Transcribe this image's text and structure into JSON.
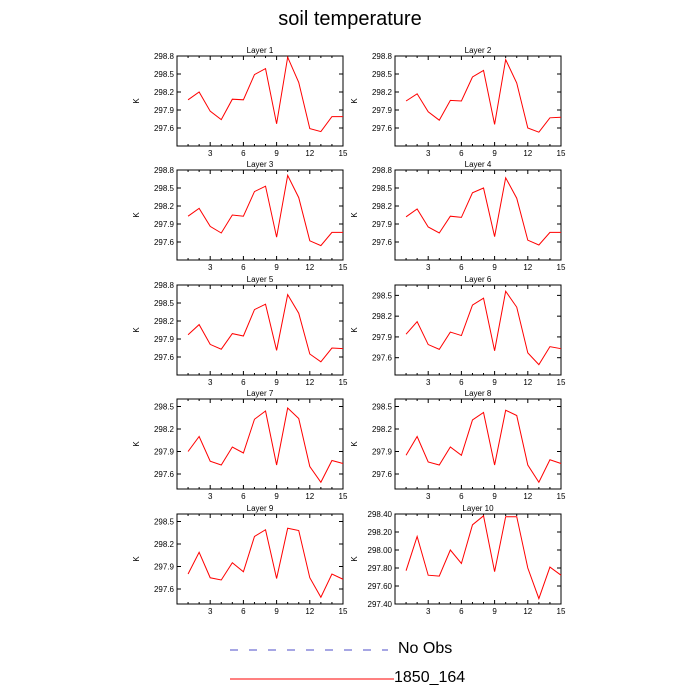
{
  "title": "soil temperature",
  "legend": {
    "entries": [
      {
        "label": "No Obs",
        "style": "dashed",
        "color": "#4c4cc8"
      },
      {
        "label": "1850_164",
        "style": "solid",
        "color": "#ff0000"
      }
    ]
  },
  "chart_data": [
    {
      "type": "line",
      "title": "Layer 1",
      "xlabel": "",
      "ylabel": "K",
      "xlim": [
        0,
        15
      ],
      "ylim": [
        297.3,
        298.8
      ],
      "x_ticks": [
        "3",
        "6",
        "9",
        "12",
        "15"
      ],
      "y_ticks": [
        "297.6",
        "297.9",
        "298.2",
        "298.5",
        "298.8"
      ],
      "x": [
        1,
        2,
        3,
        4,
        5,
        6,
        7,
        8,
        9,
        10,
        11,
        12,
        13,
        14,
        15
      ],
      "series": [
        {
          "name": "1850_164",
          "color": "#ff0000",
          "values": [
            298.07,
            298.2,
            297.88,
            297.74,
            298.08,
            298.07,
            298.49,
            298.59,
            297.67,
            298.78,
            298.36,
            297.59,
            297.54,
            297.79,
            297.79
          ]
        }
      ]
    },
    {
      "type": "line",
      "title": "Layer 2",
      "xlabel": "",
      "ylabel": "K",
      "xlim": [
        0,
        15
      ],
      "ylim": [
        297.3,
        298.8
      ],
      "x_ticks": [
        "3",
        "6",
        "9",
        "12",
        "15"
      ],
      "y_ticks": [
        "297.6",
        "297.9",
        "298.2",
        "298.5",
        "298.8"
      ],
      "x": [
        1,
        2,
        3,
        4,
        5,
        6,
        7,
        8,
        9,
        10,
        11,
        12,
        13,
        14,
        15
      ],
      "series": [
        {
          "name": "1850_164",
          "color": "#ff0000",
          "values": [
            298.05,
            298.17,
            297.87,
            297.73,
            298.06,
            298.05,
            298.45,
            298.56,
            297.66,
            298.74,
            298.35,
            297.6,
            297.53,
            297.77,
            297.78
          ]
        }
      ]
    },
    {
      "type": "line",
      "title": "Layer 3",
      "xlabel": "",
      "ylabel": "K",
      "xlim": [
        0,
        15
      ],
      "ylim": [
        297.3,
        298.8
      ],
      "x_ticks": [
        "3",
        "6",
        "9",
        "12",
        "15"
      ],
      "y_ticks": [
        "297.6",
        "297.9",
        "298.2",
        "298.5",
        "298.8"
      ],
      "x": [
        1,
        2,
        3,
        4,
        5,
        6,
        7,
        8,
        9,
        10,
        11,
        12,
        13,
        14,
        15
      ],
      "series": [
        {
          "name": "1850_164",
          "color": "#ff0000",
          "values": [
            298.03,
            298.16,
            297.86,
            297.75,
            298.05,
            298.03,
            298.44,
            298.53,
            297.68,
            298.71,
            298.34,
            297.62,
            297.54,
            297.76,
            297.76
          ]
        }
      ]
    },
    {
      "type": "line",
      "title": "Layer 4",
      "xlabel": "",
      "ylabel": "K",
      "xlim": [
        0,
        15
      ],
      "ylim": [
        297.3,
        298.8
      ],
      "x_ticks": [
        "3",
        "6",
        "9",
        "12",
        "15"
      ],
      "y_ticks": [
        "297.6",
        "297.9",
        "298.2",
        "298.5",
        "298.8"
      ],
      "x": [
        1,
        2,
        3,
        4,
        5,
        6,
        7,
        8,
        9,
        10,
        11,
        12,
        13,
        14,
        15
      ],
      "series": [
        {
          "name": "1850_164",
          "color": "#ff0000",
          "values": [
            298.02,
            298.15,
            297.85,
            297.75,
            298.03,
            298.01,
            298.42,
            298.5,
            297.69,
            298.67,
            298.33,
            297.63,
            297.55,
            297.76,
            297.76
          ]
        }
      ]
    },
    {
      "type": "line",
      "title": "Layer 5",
      "xlabel": "",
      "ylabel": "K",
      "xlim": [
        0,
        15
      ],
      "ylim": [
        297.3,
        298.8
      ],
      "x_ticks": [
        "3",
        "6",
        "9",
        "12",
        "15"
      ],
      "y_ticks": [
        "297.6",
        "297.9",
        "298.2",
        "298.5",
        "298.8"
      ],
      "x": [
        1,
        2,
        3,
        4,
        5,
        6,
        7,
        8,
        9,
        10,
        11,
        12,
        13,
        14,
        15
      ],
      "series": [
        {
          "name": "1850_164",
          "color": "#ff0000",
          "values": [
            297.97,
            298.14,
            297.81,
            297.73,
            297.99,
            297.95,
            298.39,
            298.48,
            297.71,
            298.64,
            298.33,
            297.65,
            297.52,
            297.75,
            297.74
          ]
        }
      ]
    },
    {
      "type": "line",
      "title": "Layer 6",
      "xlabel": "",
      "ylabel": "K",
      "xlim": [
        0,
        15
      ],
      "ylim": [
        297.35,
        298.65
      ],
      "x_ticks": [
        "3",
        "6",
        "9",
        "12",
        "15"
      ],
      "y_ticks": [
        "297.6",
        "297.9",
        "298.2",
        "298.5"
      ],
      "x": [
        1,
        2,
        3,
        4,
        5,
        6,
        7,
        8,
        9,
        10,
        11,
        12,
        13,
        14,
        15
      ],
      "series": [
        {
          "name": "1850_164",
          "color": "#ff0000",
          "values": [
            297.94,
            298.12,
            297.79,
            297.72,
            297.97,
            297.92,
            298.36,
            298.46,
            297.7,
            298.56,
            298.33,
            297.67,
            297.5,
            297.76,
            297.73
          ]
        }
      ]
    },
    {
      "type": "line",
      "title": "Layer 7",
      "xlabel": "",
      "ylabel": "K",
      "xlim": [
        0,
        15
      ],
      "ylim": [
        297.4,
        298.6
      ],
      "x_ticks": [
        "3",
        "6",
        "9",
        "12",
        "15"
      ],
      "y_ticks": [
        "297.6",
        "297.9",
        "298.2",
        "298.5"
      ],
      "x": [
        1,
        2,
        3,
        4,
        5,
        6,
        7,
        8,
        9,
        10,
        11,
        12,
        13,
        14,
        15
      ],
      "series": [
        {
          "name": "1850_164",
          "color": "#ff0000",
          "values": [
            297.9,
            298.1,
            297.77,
            297.72,
            297.96,
            297.88,
            298.33,
            298.44,
            297.72,
            298.48,
            298.34,
            297.7,
            297.49,
            297.78,
            297.74
          ]
        }
      ]
    },
    {
      "type": "line",
      "title": "Layer 8",
      "xlabel": "",
      "ylabel": "K",
      "xlim": [
        0,
        15
      ],
      "ylim": [
        297.4,
        298.6
      ],
      "x_ticks": [
        "3",
        "6",
        "9",
        "12",
        "15"
      ],
      "y_ticks": [
        "297.6",
        "297.9",
        "298.2",
        "298.5"
      ],
      "x": [
        1,
        2,
        3,
        4,
        5,
        6,
        7,
        8,
        9,
        10,
        11,
        12,
        13,
        14,
        15
      ],
      "series": [
        {
          "name": "1850_164",
          "color": "#ff0000",
          "values": [
            297.85,
            298.1,
            297.76,
            297.72,
            297.96,
            297.85,
            298.32,
            298.42,
            297.72,
            298.45,
            298.38,
            297.72,
            297.49,
            297.79,
            297.74
          ]
        }
      ]
    },
    {
      "type": "line",
      "title": "Layer 9",
      "xlabel": "",
      "ylabel": "K",
      "xlim": [
        0,
        15
      ],
      "ylim": [
        297.4,
        298.6
      ],
      "x_ticks": [
        "3",
        "6",
        "9",
        "12",
        "15"
      ],
      "y_ticks": [
        "297.6",
        "297.9",
        "298.2",
        "298.5"
      ],
      "x": [
        1,
        2,
        3,
        4,
        5,
        6,
        7,
        8,
        9,
        10,
        11,
        12,
        13,
        14,
        15
      ],
      "series": [
        {
          "name": "1850_164",
          "color": "#ff0000",
          "values": [
            297.8,
            298.09,
            297.75,
            297.72,
            297.95,
            297.83,
            298.3,
            298.39,
            297.74,
            298.41,
            298.38,
            297.75,
            297.49,
            297.8,
            297.73
          ]
        }
      ]
    },
    {
      "type": "line",
      "title": "Layer 10",
      "xlabel": "",
      "ylabel": "K",
      "xlim": [
        0,
        15
      ],
      "ylim": [
        297.4,
        298.4
      ],
      "x_ticks": [
        "3",
        "6",
        "9",
        "12",
        "15"
      ],
      "y_ticks": [
        "297.40",
        "297.60",
        "297.80",
        "298.00",
        "298.20",
        "298.40"
      ],
      "x": [
        1,
        2,
        3,
        4,
        5,
        6,
        7,
        8,
        9,
        10,
        11,
        12,
        13,
        14,
        15
      ],
      "series": [
        {
          "name": "1850_164",
          "color": "#ff0000",
          "values": [
            297.77,
            298.15,
            297.72,
            297.71,
            298.0,
            297.85,
            298.28,
            298.38,
            297.76,
            298.37,
            298.37,
            297.8,
            297.46,
            297.81,
            297.72
          ]
        }
      ]
    }
  ]
}
